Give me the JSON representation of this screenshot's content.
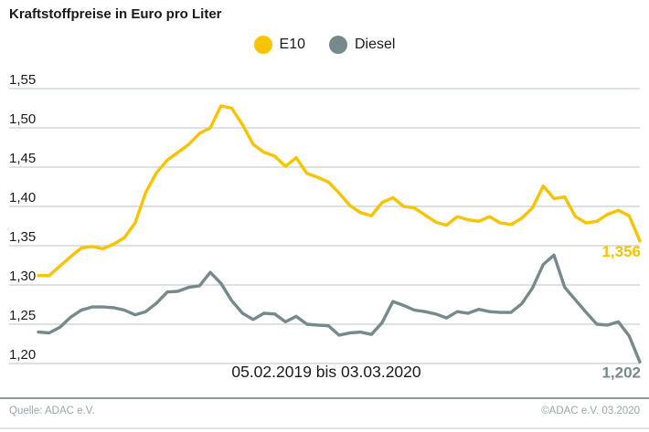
{
  "title": "Kraftstoffpreise in Euro pro Liter",
  "footer": {
    "source": "Quelle: ADAC e.V.",
    "copyright": "©ADAC e.V.  03.2020"
  },
  "colors": {
    "e10": "#f8c300",
    "diesel": "#76898b",
    "grid": "#c9cfcf",
    "axis_text": "#1a1a1a",
    "footer_text": "#98a7a8",
    "footer_divider": "#8c9ba0",
    "footer_light_line": "#dee4e4",
    "background": "#ffffff"
  },
  "chart_data": {
    "type": "line",
    "title": "Kraftstoffpreise in Euro pro Liter",
    "xlabel": "05.02.2019 bis 03.03.2020",
    "ylabel": "",
    "ylim": [
      1.2,
      1.55
    ],
    "grid": true,
    "legend_position": "top-center",
    "x_unit": "week",
    "x_start": "05.02.2019",
    "x_end": "03.03.2020",
    "yticks": [
      {
        "label": "1,55",
        "value": 1.55
      },
      {
        "label": "1,50",
        "value": 1.5
      },
      {
        "label": "1,45",
        "value": 1.45
      },
      {
        "label": "1,40",
        "value": 1.4
      },
      {
        "label": "1,35",
        "value": 1.35
      },
      {
        "label": "1,30",
        "value": 1.3
      },
      {
        "label": "1,25",
        "value": 1.25
      },
      {
        "label": "1,20",
        "value": 1.2
      }
    ],
    "series": [
      {
        "name": "E10",
        "color": "#f8c300",
        "end_label": "1,356",
        "end_value": 1.356,
        "values": [
          1.312,
          1.312,
          1.324,
          1.336,
          1.347,
          1.349,
          1.346,
          1.352,
          1.36,
          1.379,
          1.418,
          1.443,
          1.459,
          1.469,
          1.479,
          1.493,
          1.5,
          1.528,
          1.525,
          1.504,
          1.479,
          1.469,
          1.464,
          1.451,
          1.462,
          1.442,
          1.437,
          1.431,
          1.417,
          1.401,
          1.392,
          1.388,
          1.405,
          1.411,
          1.4,
          1.398,
          1.389,
          1.38,
          1.376,
          1.387,
          1.383,
          1.381,
          1.387,
          1.379,
          1.377,
          1.385,
          1.398,
          1.426,
          1.41,
          1.412,
          1.387,
          1.379,
          1.381,
          1.39,
          1.395,
          1.388,
          1.356
        ]
      },
      {
        "name": "Diesel",
        "color": "#76898b",
        "end_label": "1,202",
        "end_value": 1.202,
        "values": [
          1.24,
          1.239,
          1.246,
          1.259,
          1.268,
          1.272,
          1.272,
          1.271,
          1.268,
          1.262,
          1.266,
          1.277,
          1.291,
          1.292,
          1.297,
          1.299,
          1.316,
          1.302,
          1.28,
          1.264,
          1.256,
          1.264,
          1.263,
          1.253,
          1.26,
          1.25,
          1.249,
          1.248,
          1.236,
          1.239,
          1.24,
          1.237,
          1.252,
          1.279,
          1.274,
          1.268,
          1.266,
          1.263,
          1.258,
          1.266,
          1.264,
          1.269,
          1.266,
          1.265,
          1.265,
          1.276,
          1.296,
          1.326,
          1.338,
          1.297,
          1.281,
          1.265,
          1.25,
          1.249,
          1.253,
          1.235,
          1.202
        ]
      }
    ]
  }
}
